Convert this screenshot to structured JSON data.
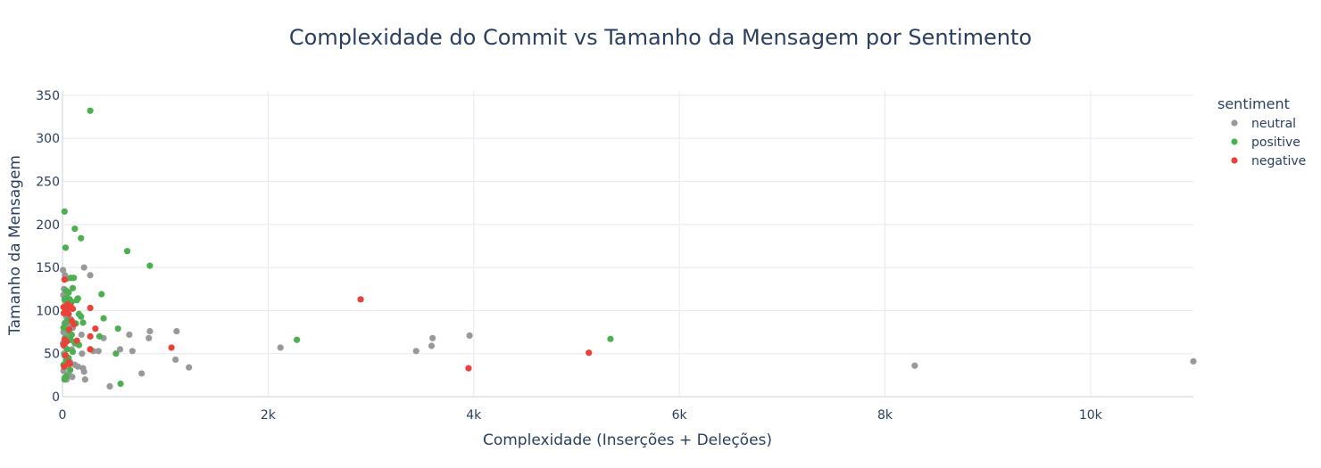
{
  "chart_data": {
    "type": "scatter",
    "title": "Complexidade do Commit vs Tamanho da Mensagem por Sentimento",
    "xlabel": "Complexidade (Inserções + Deleções)",
    "ylabel": "Tamanho da Mensagem",
    "xlim": [
      0,
      11000
    ],
    "ylim": [
      0,
      355
    ],
    "x_ticks": [
      0,
      2000,
      4000,
      6000,
      8000,
      10000
    ],
    "x_tick_labels": [
      "0",
      "2k",
      "4k",
      "6k",
      "8k",
      "10k"
    ],
    "y_ticks": [
      0,
      50,
      100,
      150,
      200,
      250,
      300,
      350
    ],
    "y_tick_labels": [
      "0",
      "50",
      "100",
      "150",
      "200",
      "250",
      "300",
      "350"
    ],
    "grid": true,
    "legend_title": "sentiment",
    "legend_position": "right",
    "series": [
      {
        "name": "neutral",
        "color": "#999999",
        "points": [
          [
            5,
            147
          ],
          [
            25,
            141
          ],
          [
            45,
            137
          ],
          [
            15,
            125
          ],
          [
            8,
            118
          ],
          [
            30,
            110
          ],
          [
            60,
            103
          ],
          [
            12,
            97
          ],
          [
            40,
            92
          ],
          [
            80,
            90
          ],
          [
            20,
            85
          ],
          [
            55,
            82
          ],
          [
            100,
            80
          ],
          [
            10,
            75
          ],
          [
            35,
            70
          ],
          [
            70,
            66
          ],
          [
            5,
            62
          ],
          [
            25,
            58
          ],
          [
            90,
            55
          ],
          [
            15,
            50
          ],
          [
            50,
            45
          ],
          [
            75,
            40
          ],
          [
            30,
            35
          ],
          [
            10,
            30
          ],
          [
            60,
            26
          ],
          [
            20,
            22
          ],
          [
            40,
            20
          ],
          [
            95,
            23
          ],
          [
            120,
            37
          ],
          [
            150,
            35
          ],
          [
            200,
            33
          ],
          [
            210,
            29
          ],
          [
            220,
            20
          ],
          [
            270,
            55
          ],
          [
            300,
            53
          ],
          [
            185,
            72
          ],
          [
            190,
            50
          ],
          [
            210,
            150
          ],
          [
            270,
            141
          ],
          [
            350,
            53
          ],
          [
            400,
            68
          ],
          [
            460,
            12
          ],
          [
            560,
            55
          ],
          [
            650,
            72
          ],
          [
            680,
            53
          ],
          [
            770,
            27
          ],
          [
            840,
            68
          ],
          [
            850,
            76
          ],
          [
            1100,
            43
          ],
          [
            1110,
            76
          ],
          [
            1230,
            34
          ],
          [
            2120,
            57
          ],
          [
            3440,
            53
          ],
          [
            3590,
            59
          ],
          [
            3600,
            68
          ],
          [
            3960,
            71
          ],
          [
            8290,
            36
          ],
          [
            11000,
            41
          ]
        ]
      },
      {
        "name": "positive",
        "color": "#4caf50",
        "points": [
          [
            20,
            215
          ],
          [
            30,
            173
          ],
          [
            270,
            332
          ],
          [
            120,
            195
          ],
          [
            180,
            184
          ],
          [
            630,
            169
          ],
          [
            850,
            152
          ],
          [
            80,
            138
          ],
          [
            110,
            138
          ],
          [
            35,
            123
          ],
          [
            60,
            121
          ],
          [
            100,
            126
          ],
          [
            150,
            114
          ],
          [
            20,
            113
          ],
          [
            45,
            115
          ],
          [
            70,
            113
          ],
          [
            380,
            119
          ],
          [
            90,
            110
          ],
          [
            140,
            112
          ],
          [
            160,
            96
          ],
          [
            180,
            93
          ],
          [
            200,
            86
          ],
          [
            400,
            91
          ],
          [
            130,
            85
          ],
          [
            55,
            89
          ],
          [
            30,
            86
          ],
          [
            110,
            84
          ],
          [
            60,
            76
          ],
          [
            90,
            72
          ],
          [
            10,
            80
          ],
          [
            25,
            68
          ],
          [
            80,
            66
          ],
          [
            540,
            79
          ],
          [
            360,
            70
          ],
          [
            120,
            62
          ],
          [
            160,
            60
          ],
          [
            45,
            55
          ],
          [
            100,
            52
          ],
          [
            2280,
            66
          ],
          [
            5330,
            67
          ],
          [
            520,
            50
          ],
          [
            20,
            48
          ],
          [
            60,
            45
          ],
          [
            35,
            42
          ],
          [
            10,
            37
          ],
          [
            75,
            31
          ],
          [
            40,
            24
          ],
          [
            20,
            20
          ],
          [
            565,
            15
          ]
        ]
      },
      {
        "name": "negative",
        "color": "#e8423a",
        "points": [
          [
            20,
            136
          ],
          [
            50,
            107
          ],
          [
            80,
            105
          ],
          [
            10,
            104
          ],
          [
            40,
            100
          ],
          [
            100,
            102
          ],
          [
            270,
            103
          ],
          [
            15,
            97
          ],
          [
            60,
            96
          ],
          [
            90,
            88
          ],
          [
            110,
            84
          ],
          [
            65,
            78
          ],
          [
            320,
            79
          ],
          [
            270,
            70
          ],
          [
            20,
            66
          ],
          [
            140,
            65
          ],
          [
            40,
            64
          ],
          [
            10,
            60
          ],
          [
            270,
            55
          ],
          [
            1060,
            57
          ],
          [
            2900,
            113
          ],
          [
            5120,
            51
          ],
          [
            3950,
            33
          ],
          [
            30,
            48
          ],
          [
            60,
            40
          ],
          [
            15,
            35
          ],
          [
            70,
            38
          ]
        ]
      }
    ]
  }
}
